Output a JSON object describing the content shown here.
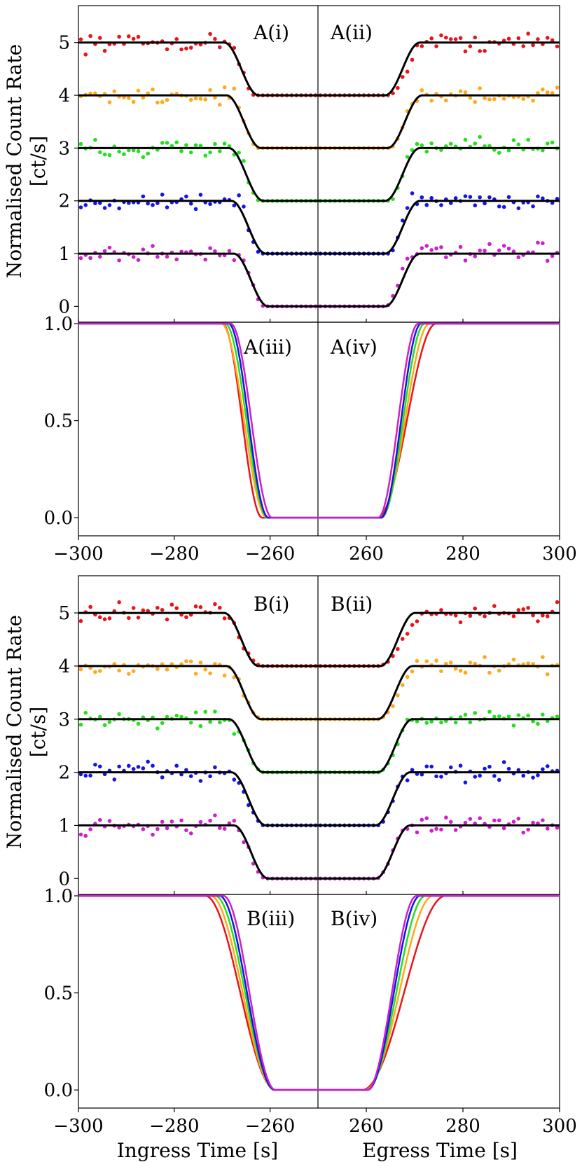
{
  "figure": {
    "y_label_line1": "Normalised Count Rate",
    "y_label_line2": "[ct/s]",
    "x_label_ingress": "Ingress Time [s]",
    "x_label_egress": "Egress Time [s]"
  },
  "chart_data": {
    "type": "line",
    "description_free": true,
    "x_ticks_ingress": [
      -300,
      -280,
      -260
    ],
    "x_ticks_egress": [
      260,
      280,
      300
    ],
    "x_tick_labels_ingress": [
      "−300",
      "−280",
      "−260"
    ],
    "x_tick_labels_egress": [
      "260",
      "280",
      "300"
    ],
    "series_colors": [
      "#e8141a",
      "#ffa81a",
      "#22e01c",
      "#1414e6",
      "#cc20cc"
    ],
    "series_levels": [
      4,
      3,
      2,
      1,
      0
    ],
    "panel_groups": [
      {
        "light_curve_panels": {
          "left_label": "A(i)",
          "right_label": "A(ii)"
        },
        "profile_panels": {
          "left_label": "A(iii)",
          "right_label": "A(iv)"
        },
        "light_curve_ylim": [
          -0.3,
          5.7
        ],
        "light_curve_yticks": [
          0,
          1,
          2,
          3,
          4,
          5
        ],
        "profile_ylim": [
          -0.05,
          1.0
        ],
        "profile_yticks": [
          "0.0",
          "0.5",
          "1.0"
        ],
        "ingress_mid": [
          -265.8,
          -265.4,
          -264.9,
          -264.5,
          -263.9
        ],
        "ingress_halfwidth": [
          2.6,
          3.0,
          2.8,
          2.6,
          2.7
        ],
        "egress_mid": [
          268.4,
          268.0,
          267.6,
          267.2,
          266.6
        ],
        "egress_halfwidth": [
          3.8,
          3.2,
          2.8,
          2.6,
          2.6
        ],
        "fit_ingress_mid": [
          -266.0,
          -265.5,
          -265.0,
          -264.5,
          -264.0
        ],
        "fit_egress_mid": [
          267.5,
          268.0,
          267.5,
          267.5,
          267.5
        ]
      },
      {
        "light_curve_panels": {
          "left_label": "B(i)",
          "right_label": "B(ii)"
        },
        "profile_panels": {
          "left_label": "B(iii)",
          "right_label": "B(iv)"
        },
        "light_curve_ylim": [
          -0.3,
          5.7
        ],
        "light_curve_yticks": [
          0,
          1,
          2,
          3,
          4,
          5
        ],
        "profile_ylim": [
          -0.05,
          1.0
        ],
        "profile_yticks": [
          "0.0",
          "0.5",
          "1.0"
        ],
        "ingress_mid": [
          -266.2,
          -265.7,
          -265.2,
          -264.8,
          -264.3
        ],
        "ingress_halfwidth": [
          4.6,
          4.2,
          3.9,
          3.6,
          3.4
        ],
        "egress_mid": [
          267.8,
          266.8,
          266.2,
          265.7,
          265.3
        ],
        "egress_halfwidth": [
          5.4,
          4.4,
          3.8,
          3.4,
          3.2
        ],
        "fit_ingress_mid": [
          -266.0,
          -265.5,
          -265.0,
          -264.5,
          -264.0
        ],
        "fit_egress_mid": [
          266.5,
          266.0,
          266.0,
          265.5,
          265.5
        ]
      }
    ]
  }
}
